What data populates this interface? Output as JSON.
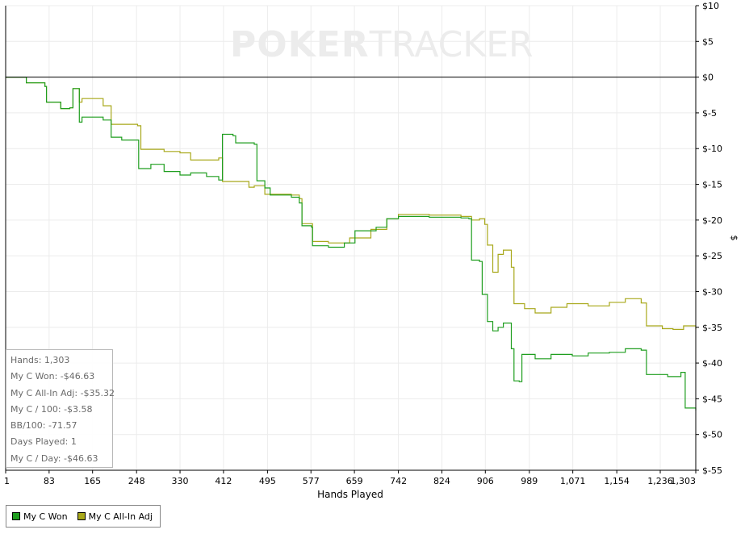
{
  "watermark": {
    "part1": "POKER",
    "part2": "TRACKER"
  },
  "stats": [
    "Hands: 1,303",
    "My C Won: -$46.63",
    "My C All-In Adj: -$35.32",
    "My C / 100: -$3.58",
    "BB/100: -71.57",
    "Days Played: 1",
    "My C / Day: -$46.63"
  ],
  "legend": [
    {
      "label": "My C Won",
      "color": "#1f9e1f"
    },
    {
      "label": "My C All-In Adj",
      "color": "#a8a81a"
    }
  ],
  "chart_data": {
    "type": "line",
    "xlabel": "Hands Played",
    "ylabel": "$",
    "xlim": [
      1,
      1303
    ],
    "ylim": [
      -55,
      10
    ],
    "x_ticks": [
      1,
      83,
      165,
      248,
      330,
      412,
      495,
      577,
      659,
      742,
      824,
      906,
      989,
      1071,
      1154,
      1236,
      1303
    ],
    "x_tick_labels": [
      "1",
      "83",
      "165",
      "248",
      "330",
      "412",
      "495",
      "577",
      "659",
      "742",
      "824",
      "906",
      "989",
      "1,071",
      "1,154",
      "1,236",
      "1,303"
    ],
    "y_ticks": [
      10,
      5,
      0,
      -5,
      -10,
      -15,
      -20,
      -25,
      -30,
      -35,
      -40,
      -45,
      -50,
      -55
    ],
    "y_tick_labels": [
      "$10",
      "$5",
      "$0",
      "$-5",
      "$-10",
      "$-15",
      "$-20",
      "$-25",
      "$-30",
      "$-35",
      "$-40",
      "$-45",
      "$-50",
      "$-55"
    ],
    "grid": true,
    "legend_position": "bottom-left",
    "series": [
      {
        "name": "My C Won",
        "color": "#1f9e1f",
        "points": [
          [
            1,
            0
          ],
          [
            40,
            -0.8
          ],
          [
            75,
            -1.3
          ],
          [
            78,
            -3.5
          ],
          [
            105,
            -4.4
          ],
          [
            122,
            -4.3
          ],
          [
            128,
            -1.6
          ],
          [
            136,
            -1.6
          ],
          [
            140,
            -6.3
          ],
          [
            145,
            -5.6
          ],
          [
            185,
            -6.0
          ],
          [
            200,
            -8.4
          ],
          [
            220,
            -8.8
          ],
          [
            245,
            -8.8
          ],
          [
            252,
            -12.8
          ],
          [
            275,
            -12.2
          ],
          [
            300,
            -13.2
          ],
          [
            330,
            -13.7
          ],
          [
            350,
            -13.4
          ],
          [
            380,
            -13.9
          ],
          [
            403,
            -14.4
          ],
          [
            410,
            -8.0
          ],
          [
            430,
            -8.2
          ],
          [
            435,
            -9.2
          ],
          [
            470,
            -9.4
          ],
          [
            475,
            -14.5
          ],
          [
            490,
            -15.5
          ],
          [
            500,
            -16.5
          ],
          [
            540,
            -16.8
          ],
          [
            555,
            -17.6
          ],
          [
            560,
            -20.8
          ],
          [
            578,
            -21.0
          ],
          [
            580,
            -23.6
          ],
          [
            610,
            -23.8
          ],
          [
            640,
            -23.2
          ],
          [
            660,
            -21.5
          ],
          [
            700,
            -21.0
          ],
          [
            720,
            -19.8
          ],
          [
            742,
            -19.5
          ],
          [
            800,
            -19.6
          ],
          [
            860,
            -19.7
          ],
          [
            875,
            -19.8
          ],
          [
            880,
            -25.6
          ],
          [
            895,
            -25.8
          ],
          [
            900,
            -30.4
          ],
          [
            910,
            -34.2
          ],
          [
            920,
            -35.5
          ],
          [
            930,
            -35.0
          ],
          [
            940,
            -34.4
          ],
          [
            955,
            -38.0
          ],
          [
            960,
            -42.5
          ],
          [
            970,
            -42.6
          ],
          [
            975,
            -38.8
          ],
          [
            1000,
            -39.4
          ],
          [
            1030,
            -38.8
          ],
          [
            1070,
            -39.0
          ],
          [
            1100,
            -38.6
          ],
          [
            1140,
            -38.5
          ],
          [
            1170,
            -38.0
          ],
          [
            1200,
            -38.2
          ],
          [
            1210,
            -41.6
          ],
          [
            1250,
            -41.9
          ],
          [
            1275,
            -41.3
          ],
          [
            1283,
            -46.3
          ],
          [
            1303,
            -46.6
          ]
        ]
      },
      {
        "name": "My C All-In Adj",
        "color": "#a8a81a",
        "points": [
          [
            1,
            0
          ],
          [
            40,
            -0.8
          ],
          [
            75,
            -1.3
          ],
          [
            78,
            -3.5
          ],
          [
            105,
            -4.4
          ],
          [
            122,
            -4.3
          ],
          [
            128,
            -1.6
          ],
          [
            136,
            -1.6
          ],
          [
            140,
            -3.5
          ],
          [
            145,
            -3.0
          ],
          [
            185,
            -4.0
          ],
          [
            200,
            -6.6
          ],
          [
            250,
            -6.8
          ],
          [
            256,
            -10.1
          ],
          [
            300,
            -10.4
          ],
          [
            330,
            -10.6
          ],
          [
            350,
            -11.6
          ],
          [
            403,
            -11.3
          ],
          [
            410,
            -14.6
          ],
          [
            460,
            -15.4
          ],
          [
            470,
            -15.2
          ],
          [
            490,
            -16.4
          ],
          [
            540,
            -16.5
          ],
          [
            555,
            -17.0
          ],
          [
            560,
            -20.5
          ],
          [
            570,
            -20.5
          ],
          [
            580,
            -23.0
          ],
          [
            610,
            -23.2
          ],
          [
            650,
            -22.5
          ],
          [
            690,
            -21.3
          ],
          [
            720,
            -19.8
          ],
          [
            742,
            -19.2
          ],
          [
            800,
            -19.3
          ],
          [
            860,
            -19.5
          ],
          [
            880,
            -20.0
          ],
          [
            895,
            -19.8
          ],
          [
            905,
            -20.6
          ],
          [
            910,
            -23.5
          ],
          [
            920,
            -27.3
          ],
          [
            930,
            -24.8
          ],
          [
            940,
            -24.2
          ],
          [
            955,
            -26.6
          ],
          [
            960,
            -31.7
          ],
          [
            980,
            -32.4
          ],
          [
            1000,
            -33.0
          ],
          [
            1030,
            -32.2
          ],
          [
            1060,
            -31.7
          ],
          [
            1100,
            -32.0
          ],
          [
            1140,
            -31.5
          ],
          [
            1170,
            -31.0
          ],
          [
            1200,
            -31.6
          ],
          [
            1210,
            -34.8
          ],
          [
            1240,
            -35.2
          ],
          [
            1260,
            -35.3
          ],
          [
            1280,
            -34.8
          ],
          [
            1303,
            -35.3
          ]
        ]
      }
    ]
  }
}
